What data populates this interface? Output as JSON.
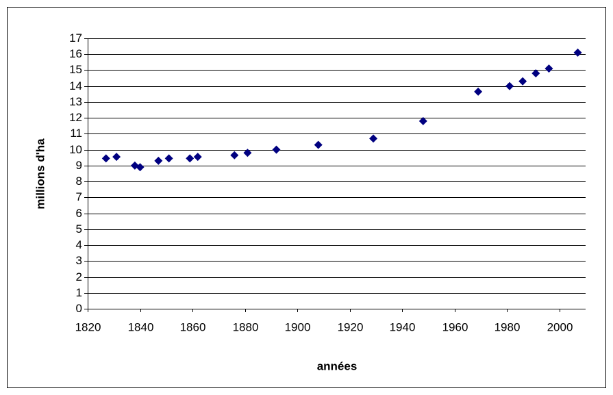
{
  "chart_data": {
    "type": "scatter",
    "x_label": "années",
    "y_label": "millions d'ha",
    "x": [
      1827,
      1831,
      1838,
      1840,
      1847,
      1851,
      1859,
      1862,
      1876,
      1881,
      1892,
      1908,
      1929,
      1948,
      1969,
      1981,
      1986,
      1991,
      1996,
      2007
    ],
    "values": [
      9.45,
      9.55,
      9.0,
      8.9,
      9.3,
      9.45,
      9.45,
      9.55,
      9.65,
      9.8,
      10.0,
      10.3,
      10.7,
      11.8,
      13.65,
      14.0,
      14.3,
      14.8,
      15.1,
      16.1
    ],
    "color": "#000080",
    "xlim": [
      1820,
      2010
    ],
    "xticks": [
      1820,
      1840,
      1860,
      1880,
      1900,
      1920,
      1940,
      1960,
      1980,
      2000
    ],
    "ylim": [
      0,
      17
    ],
    "yticks": [
      0,
      1,
      2,
      3,
      4,
      5,
      6,
      7,
      8,
      9,
      10,
      11,
      12,
      13,
      14,
      15,
      16,
      17
    ],
    "grid": true
  }
}
